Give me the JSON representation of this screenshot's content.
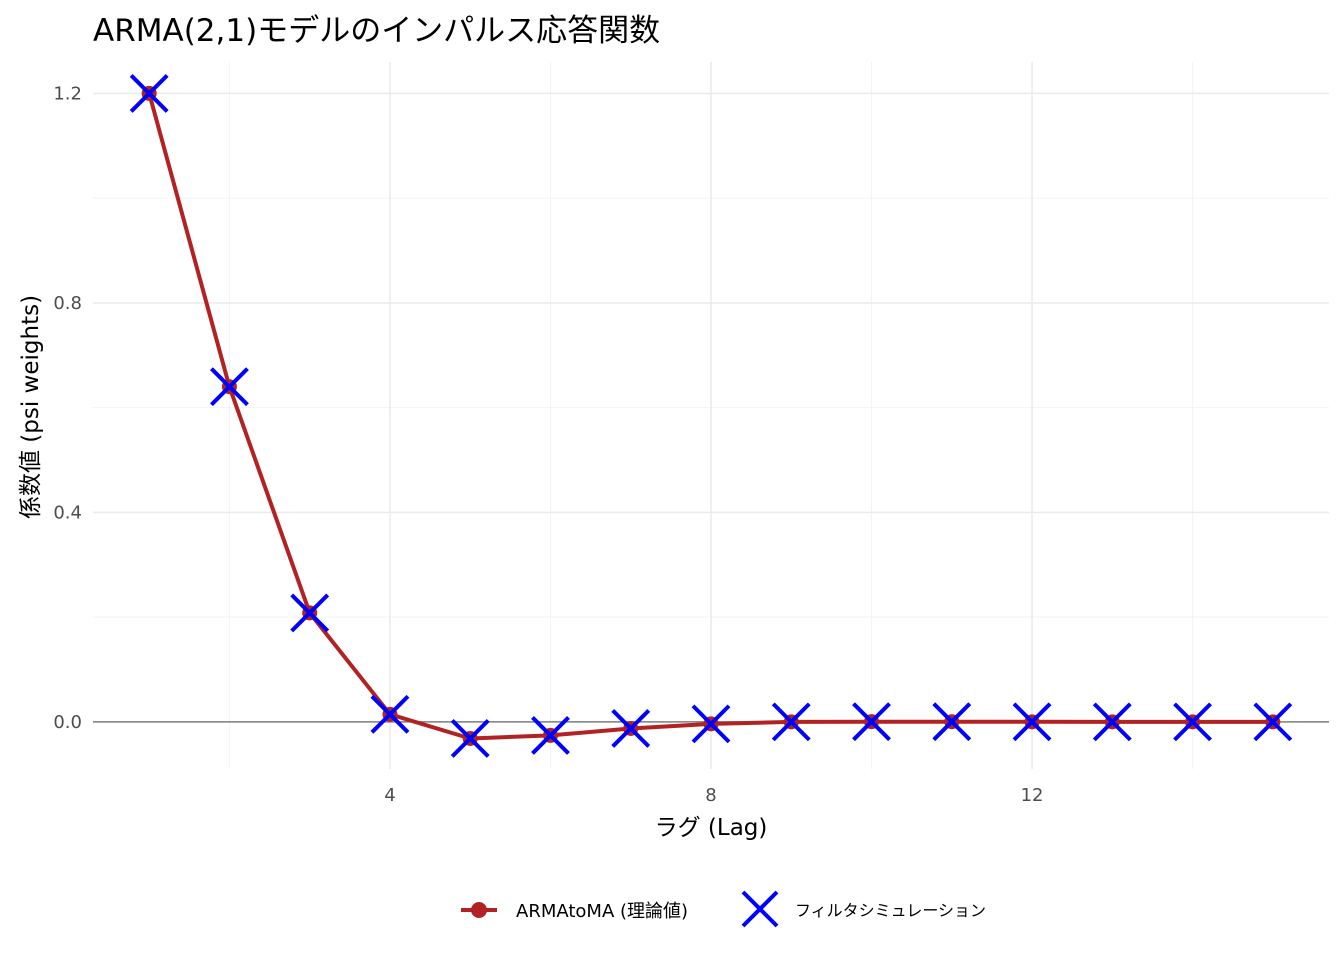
{
  "chart_data": {
    "type": "line",
    "title": "ARMA(2,1)モデルのインパルス応答関数",
    "xlabel": "ラグ (Lag)",
    "ylabel": "係数値 (psi weights)",
    "xlim": [
      0.3,
      15.7
    ],
    "ylim": [
      -0.09,
      1.26
    ],
    "x_ticks": [
      4,
      8,
      12
    ],
    "x_tick_labels": [
      "4",
      "8",
      "12"
    ],
    "x_minor_ticks": [
      2,
      6,
      10,
      14
    ],
    "y_ticks": [
      0.0,
      0.4,
      0.8,
      1.2
    ],
    "y_tick_labels": [
      "0.0",
      "0.4",
      "0.8",
      "1.2"
    ],
    "y_minor_ticks": [
      0.2,
      0.6,
      1.0
    ],
    "hline": 0,
    "grid": true,
    "legend_position": "bottom",
    "x": [
      1,
      2,
      3,
      4,
      5,
      6,
      7,
      8,
      9,
      10,
      11,
      12,
      13,
      14,
      15
    ],
    "series": [
      {
        "name": "ARMAtoMA (理論値)",
        "style": "line+point",
        "color": "#b22222",
        "values": [
          1.2,
          0.64,
          0.208,
          0.0144,
          -0.0317,
          -0.0259,
          -0.0126,
          -0.0038,
          0.0,
          0.0004,
          0.0003,
          0.0001,
          0.0,
          0.0,
          0.0
        ]
      },
      {
        "name": "フィルタシミュレーション",
        "style": "cross",
        "color": "#0000ff",
        "values": [
          1.2,
          0.64,
          0.208,
          0.0144,
          -0.0317,
          -0.0259,
          -0.0126,
          -0.0038,
          0.0,
          0.0004,
          0.0003,
          0.0001,
          0.0,
          0.0,
          0.0
        ]
      }
    ]
  }
}
